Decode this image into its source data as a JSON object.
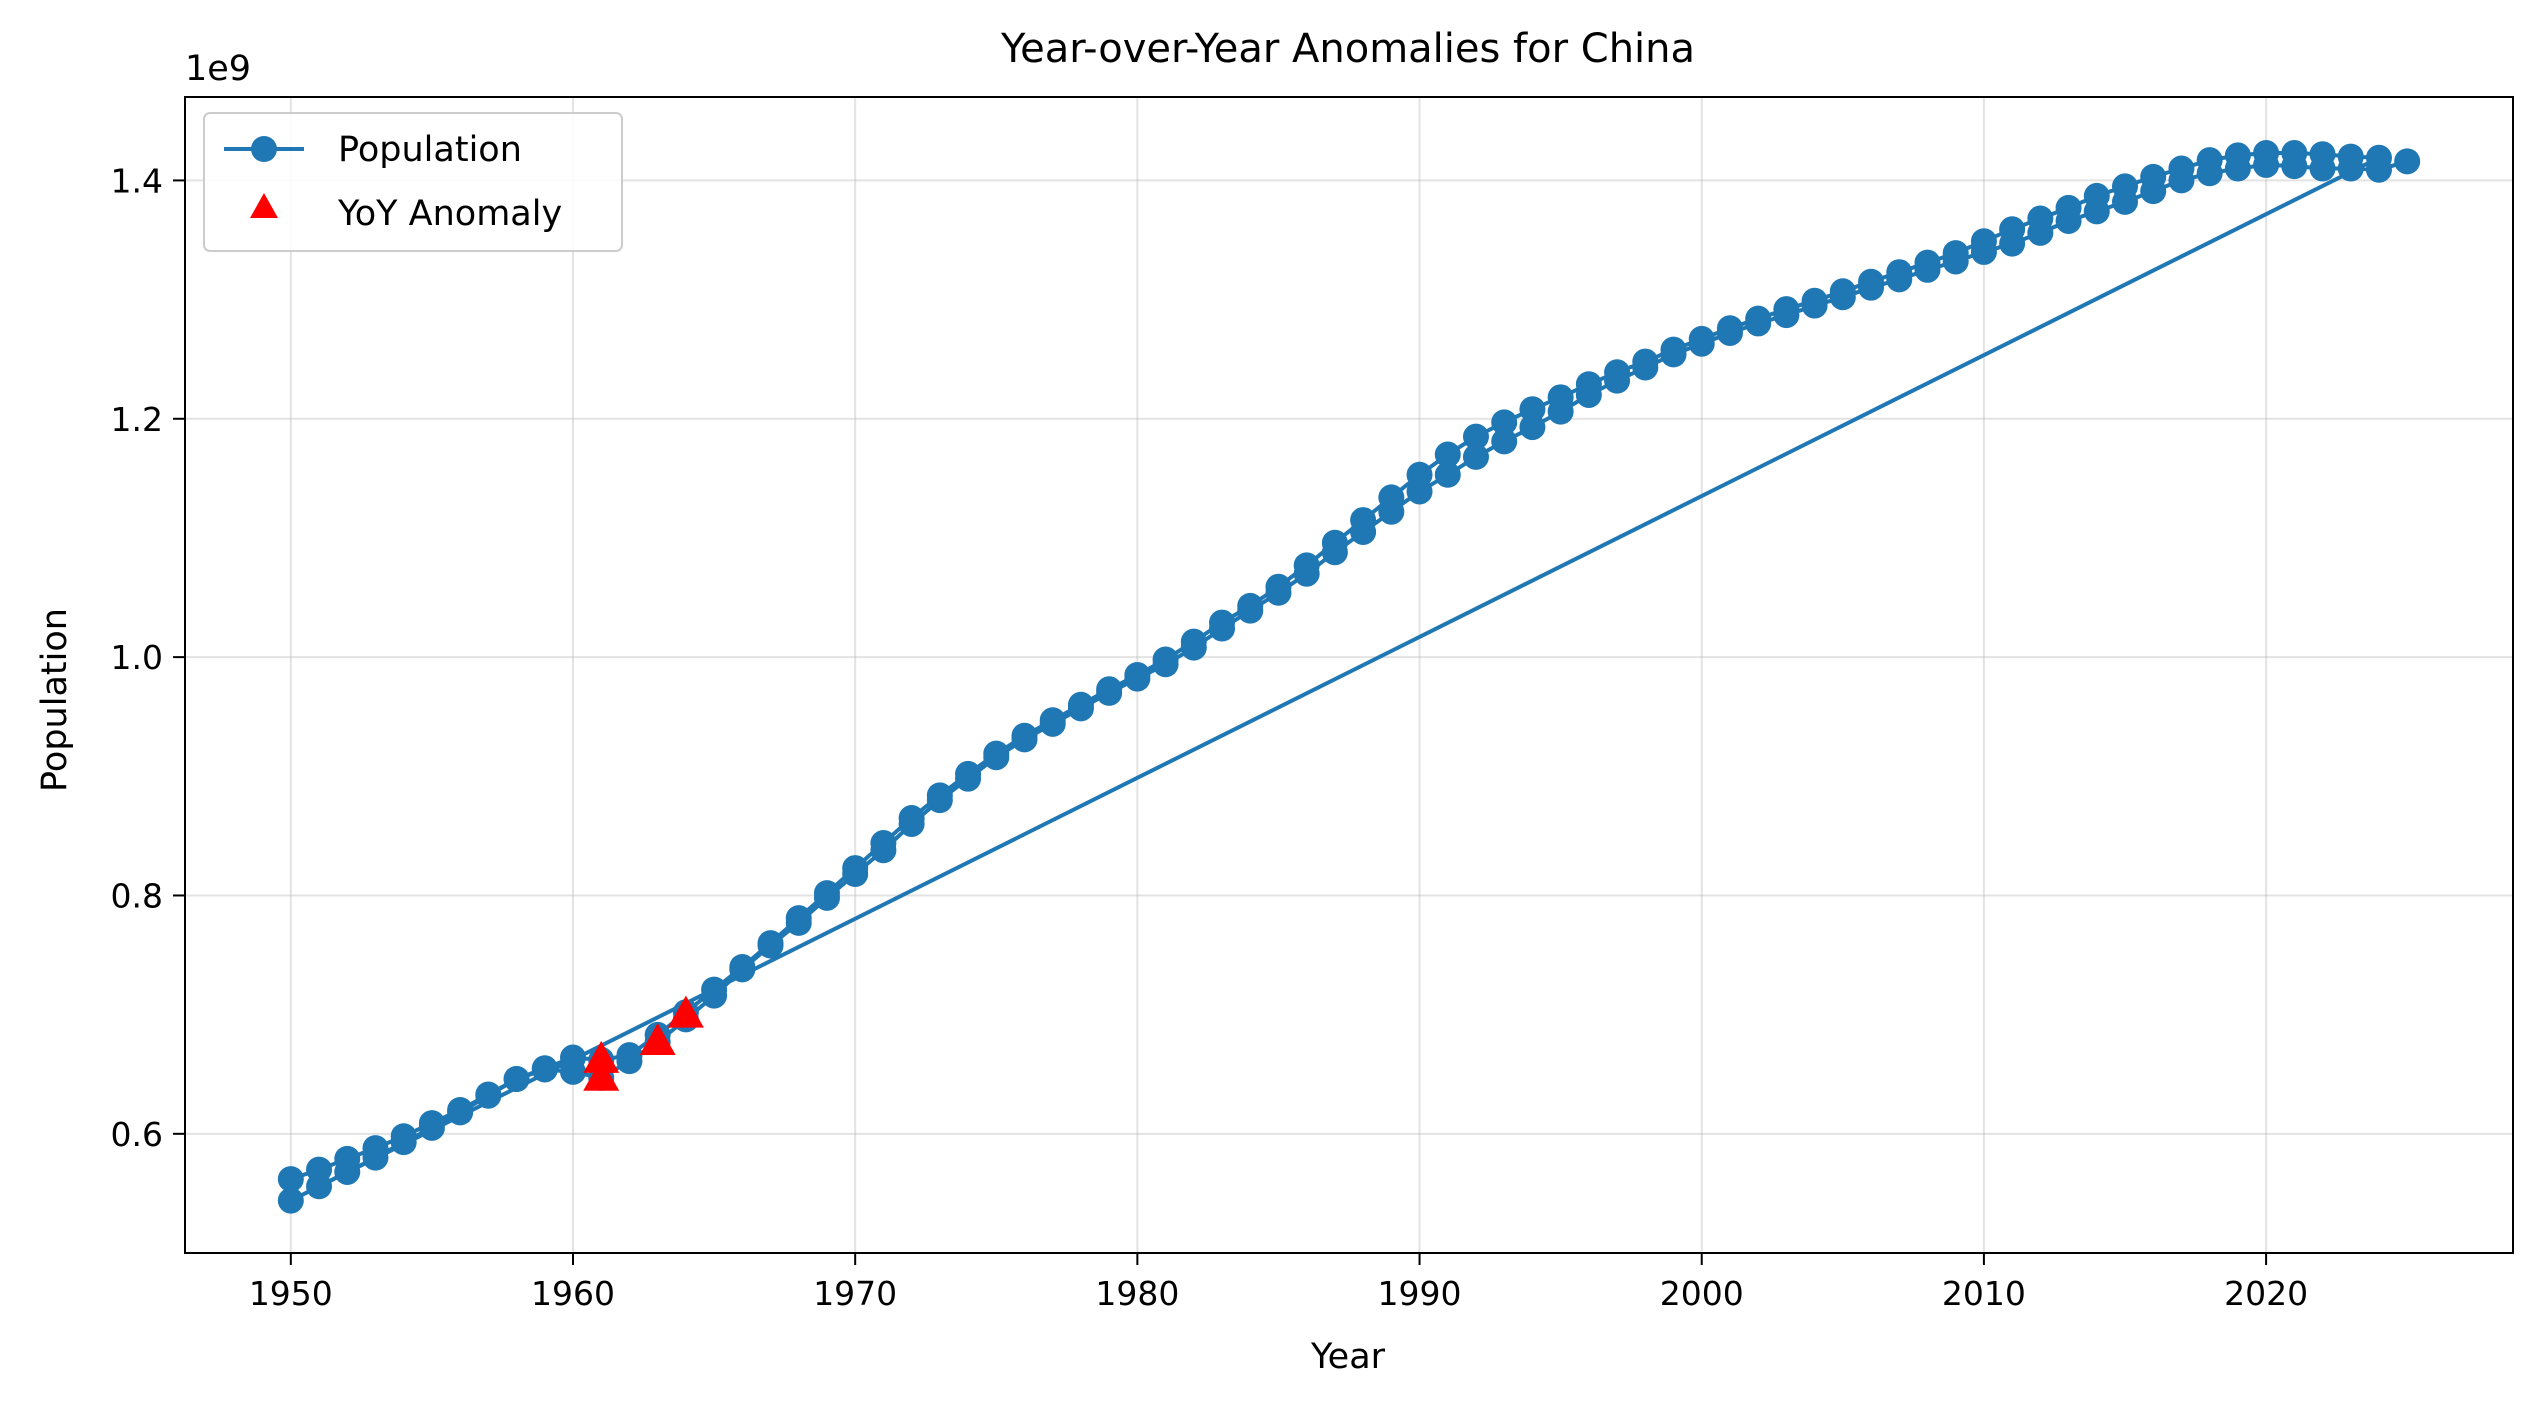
{
  "chart_data": {
    "type": "line",
    "title": "Year-over-Year Anomalies for China",
    "xlabel": "Year",
    "ylabel": "Population",
    "y_offset_text": "1e9",
    "xlim": [
      1946.25,
      2028.75
    ],
    "ylim": [
      0.5,
      1.47
    ],
    "x_ticks": [
      1950,
      1960,
      1970,
      1980,
      1990,
      2000,
      2010,
      2020
    ],
    "y_ticks": [
      0.6,
      0.8,
      1.0,
      1.2,
      1.4
    ],
    "y_tick_labels": [
      "0.6",
      "0.8",
      "1.0",
      "1.2",
      "1.4"
    ],
    "grid": true,
    "legend_position": "top-left",
    "series": [
      {
        "name": "Population",
        "kind": "line-with-markers",
        "color": "#1f77b4",
        "x": [
          1950,
          1951,
          1952,
          1953,
          1954,
          1955,
          1956,
          1957,
          1958,
          1959,
          1960,
          1961,
          1962,
          1963,
          1964,
          1965,
          1966,
          1967,
          1968,
          1969,
          1970,
          1971,
          1972,
          1973,
          1974,
          1975,
          1976,
          1977,
          1978,
          1979,
          1980,
          1981,
          1982,
          1983,
          1984,
          1985,
          1986,
          1987,
          1988,
          1989,
          1990,
          1991,
          1992,
          1993,
          1994,
          1995,
          1996,
          1997,
          1998,
          1999,
          2000,
          2001,
          2002,
          2003,
          2004,
          2005,
          2006,
          2007,
          2008,
          2009,
          2010,
          2011,
          2012,
          2013,
          2014,
          2015,
          2016,
          2017,
          2018,
          2019,
          2020,
          2021,
          2022,
          2023,
          2024,
          1950,
          1951,
          1952,
          1953,
          1954,
          1955,
          1956,
          1957,
          1958,
          1959,
          1960,
          1961,
          1962,
          1963,
          1964,
          1965,
          1966,
          1967,
          1968,
          1969,
          1970,
          1971,
          1972,
          1973,
          1974,
          1975,
          1976,
          1977,
          1978,
          1979,
          1980,
          1981,
          1982,
          1983,
          1984,
          1985,
          1986,
          1987,
          1988,
          1989,
          1990,
          1991,
          1992,
          1993,
          1994,
          1995,
          1996,
          1997,
          1998,
          1999,
          2000,
          2001,
          2002,
          2003,
          2004,
          2005,
          2006,
          2007,
          2008,
          2009,
          2010,
          2011,
          2012,
          2013,
          2014,
          2015,
          2016,
          2017,
          2018,
          2019,
          2020,
          2021,
          2022,
          2023,
          2024,
          2025
        ],
        "y": [
          0.562,
          0.57,
          0.579,
          0.588,
          0.598,
          0.609,
          0.62,
          0.633,
          0.646,
          0.655,
          0.664,
          0.662,
          0.666,
          0.683,
          0.702,
          0.721,
          0.74,
          0.76,
          0.781,
          0.802,
          0.823,
          0.844,
          0.865,
          0.884,
          0.902,
          0.919,
          0.934,
          0.947,
          0.96,
          0.973,
          0.985,
          0.998,
          1.013,
          1.029,
          1.043,
          1.059,
          1.077,
          1.096,
          1.115,
          1.134,
          1.153,
          1.17,
          1.185,
          1.197,
          1.208,
          1.218,
          1.229,
          1.239,
          1.248,
          1.258,
          1.267,
          1.276,
          1.284,
          1.292,
          1.299,
          1.307,
          1.315,
          1.323,
          1.331,
          1.339,
          1.349,
          1.359,
          1.368,
          1.377,
          1.387,
          1.395,
          1.403,
          1.41,
          1.417,
          1.421,
          1.423,
          1.423,
          1.422,
          1.42,
          1.419,
          0.544,
          0.556,
          0.568,
          0.58,
          0.593,
          0.605,
          0.618,
          0.632,
          0.646,
          0.654,
          0.652,
          0.647,
          0.661,
          0.677,
          0.696,
          0.716,
          0.738,
          0.758,
          0.777,
          0.798,
          0.818,
          0.838,
          0.86,
          0.88,
          0.898,
          0.916,
          0.931,
          0.944,
          0.957,
          0.97,
          0.982,
          0.994,
          1.008,
          1.024,
          1.039,
          1.054,
          1.07,
          1.088,
          1.105,
          1.122,
          1.139,
          1.153,
          1.168,
          1.181,
          1.193,
          1.206,
          1.22,
          1.232,
          1.243,
          1.254,
          1.263,
          1.272,
          1.28,
          1.287,
          1.295,
          1.302,
          1.31,
          1.317,
          1.325,
          1.332,
          1.34,
          1.347,
          1.356,
          1.366,
          1.374,
          1.382,
          1.391,
          1.4,
          1.406,
          1.41,
          1.413,
          1.412,
          1.41,
          1.41,
          1.409,
          1.416
        ]
      },
      {
        "name": "YoY Anomaly",
        "kind": "scatter",
        "marker": "triangle-up",
        "color": "#ff0000",
        "x": [
          1961,
          1961,
          1963,
          1964
        ],
        "y": [
          0.662,
          0.647,
          0.677,
          0.7
        ]
      }
    ]
  }
}
